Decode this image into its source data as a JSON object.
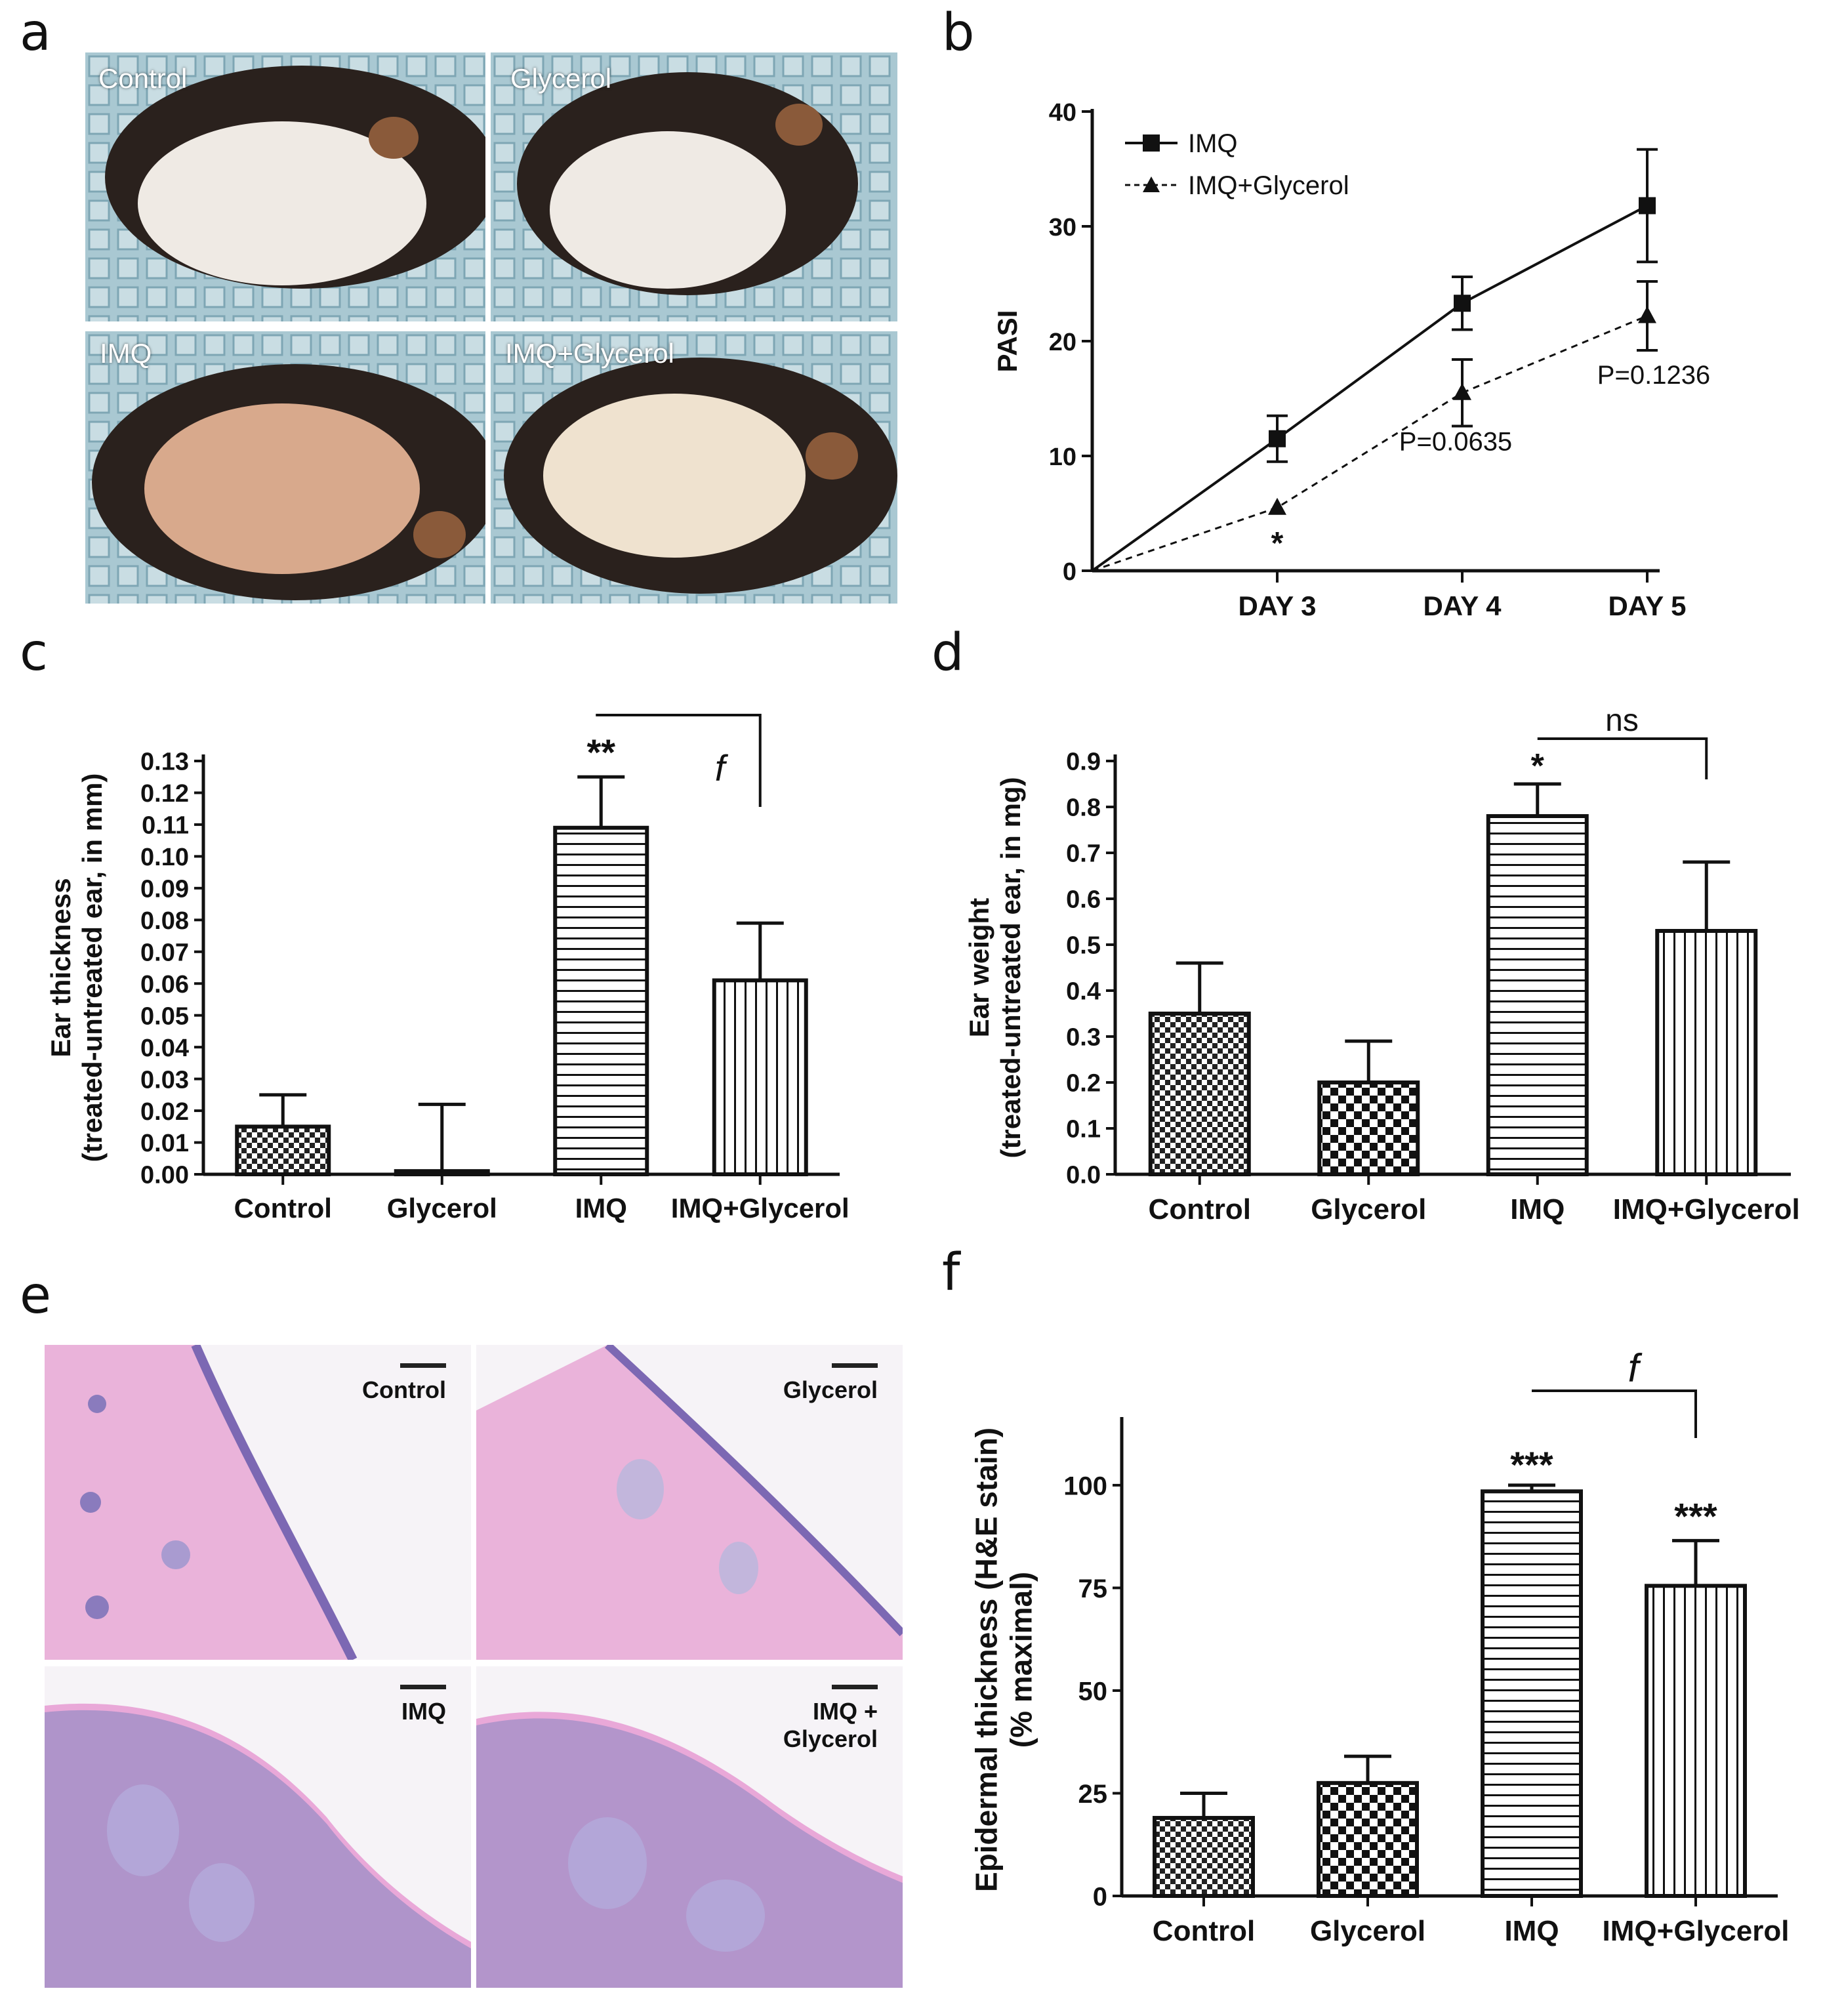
{
  "panel_letters": [
    "a",
    "b",
    "c",
    "d",
    "e",
    "f"
  ],
  "photos": {
    "labels": [
      "Control",
      "Glycerol",
      "IMQ",
      "IMQ+Glycerol"
    ]
  },
  "histology": {
    "labels": [
      "Control",
      "Glycerol",
      "IMQ",
      "IMQ +\nGlycerol"
    ]
  },
  "colors": {
    "axis": "#111111",
    "bar_outline": "#111111",
    "photo_bg": "#9fc3cf",
    "stain_pink": "#e7a6d6",
    "stain_purple": "#8a7bbd"
  },
  "chart_data": [
    {
      "id": "b",
      "type": "line",
      "ylabel": "PASI",
      "categories": [
        "DAY 3",
        "DAY 4",
        "DAY 5"
      ],
      "ylim": [
        0,
        40
      ],
      "yticks": [
        0,
        10,
        20,
        30,
        40
      ],
      "series": [
        {
          "name": "IMQ",
          "marker": "square",
          "line": "solid",
          "x": [
            0,
            1,
            2,
            3
          ],
          "values": [
            0,
            11.5,
            23.3,
            31.8
          ],
          "errors": [
            0,
            2.0,
            2.3,
            4.9
          ]
        },
        {
          "name": "IMQ+Glycerol",
          "marker": "triangle",
          "line": "dashed",
          "x": [
            0,
            1,
            2,
            3
          ],
          "values": [
            0,
            5.5,
            15.5,
            22.2
          ],
          "errors": [
            0,
            0,
            2.9,
            3.0
          ]
        }
      ],
      "annotations": [
        "*",
        "P=0.0635",
        "P=0.1236"
      ],
      "legend": "top-left"
    },
    {
      "id": "c",
      "type": "bar",
      "ylabel": "Ear thickness\n(treated-untreated ear, in mm)",
      "categories": [
        "Control",
        "Glycerol",
        "IMQ",
        "IMQ+Glycerol"
      ],
      "values": [
        0.015,
        0.001,
        0.109,
        0.061
      ],
      "errors": [
        0.01,
        0.021,
        0.016,
        0.018
      ],
      "patterns": [
        "checker",
        "checker-coarse",
        "horizontal",
        "vertical"
      ],
      "ylim": [
        0,
        0.13
      ],
      "yticks": [
        "0.00",
        "0.01",
        "0.02",
        "0.03",
        "0.04",
        "0.05",
        "0.06",
        "0.07",
        "0.08",
        "0.09",
        "0.10",
        "0.11",
        "0.12",
        "0.13"
      ],
      "annotations": [
        "**",
        "f"
      ]
    },
    {
      "id": "d",
      "type": "bar",
      "ylabel": "Ear weight\n(treated-untreated ear, in mg)",
      "categories": [
        "Control",
        "Glycerol",
        "IMQ",
        "IMQ+Glycerol"
      ],
      "values": [
        0.35,
        0.2,
        0.78,
        0.53
      ],
      "errors": [
        0.11,
        0.09,
        0.07,
        0.15
      ],
      "patterns": [
        "checker",
        "checker-coarse",
        "horizontal",
        "vertical"
      ],
      "ylim": [
        0,
        0.9
      ],
      "yticks": [
        "0.0",
        "0.1",
        "0.2",
        "0.3",
        "0.4",
        "0.5",
        "0.6",
        "0.7",
        "0.8",
        "0.9"
      ],
      "annotations": [
        "*",
        "ns"
      ]
    },
    {
      "id": "f",
      "type": "bar",
      "ylabel": "Epidermal thickness (H&E stain)\n(% maximal)",
      "categories": [
        "Control",
        "Glycerol",
        "IMQ",
        "IMQ+Glycerol"
      ],
      "values": [
        19,
        27.5,
        98.5,
        75.5
      ],
      "errors": [
        6,
        6.5,
        1.5,
        11
      ],
      "patterns": [
        "checker",
        "checker-coarse",
        "horizontal",
        "vertical"
      ],
      "ylim": [
        0,
        115
      ],
      "yticks": [
        "0",
        "25",
        "50",
        "75",
        "100"
      ],
      "annotations": [
        "***",
        "***",
        "f"
      ]
    }
  ]
}
